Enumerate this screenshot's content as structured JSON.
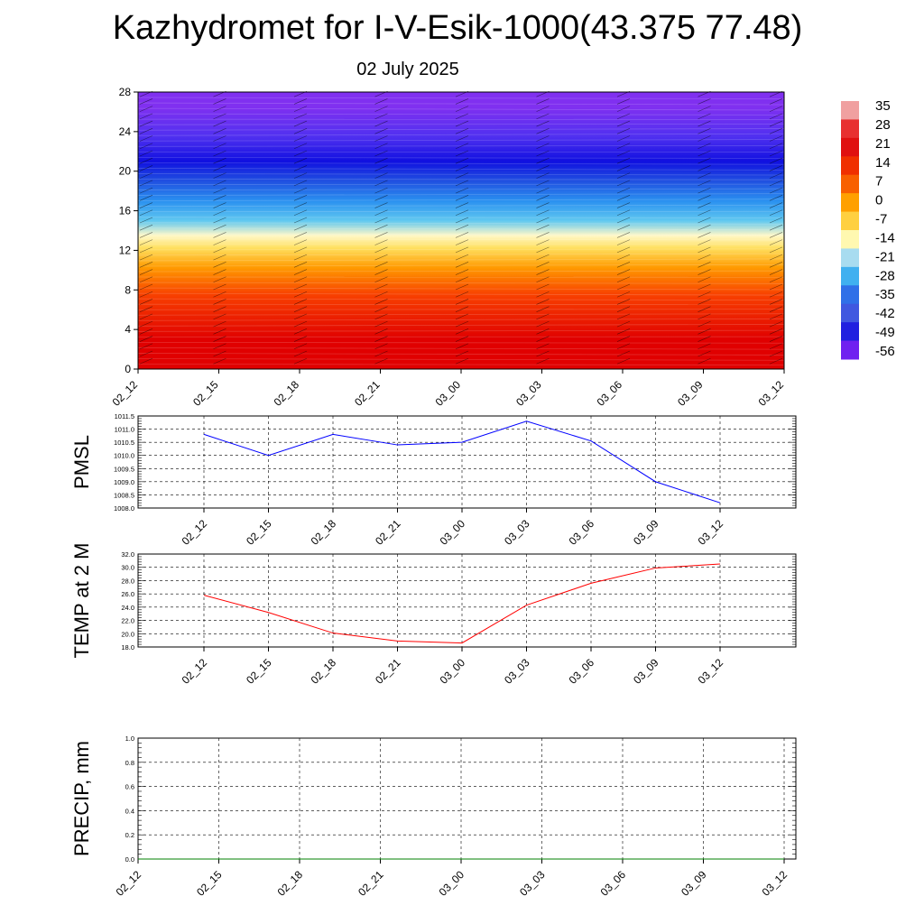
{
  "title": "Kazhydromet for I-V-Esik-1000(43.375 77.48)",
  "subtitle": "02 July 2025",
  "chart_data": [
    {
      "type": "heatmap",
      "name": "temperature-cross-section",
      "x_labels": [
        "02_12",
        "02_15",
        "02_18",
        "02_21",
        "03_00",
        "03_03",
        "03_06",
        "03_09",
        "03_12"
      ],
      "y_ticks": [
        0,
        4,
        8,
        12,
        16,
        20,
        24,
        28
      ],
      "ylim": [
        0,
        28
      ],
      "colorbar": {
        "labels": [
          "35",
          "28",
          "21",
          "14",
          "7",
          "0",
          "-7",
          "-14",
          "-21",
          "-28",
          "-35",
          "-42",
          "-49",
          "-56"
        ],
        "colors": [
          "#f0a0a0",
          "#e83030",
          "#e01010",
          "#f03000",
          "#f86000",
          "#ffa000",
          "#ffd040",
          "#fff8b0",
          "#a8dcf0",
          "#40b0f0",
          "#3070e8",
          "#4058e0",
          "#2020e0",
          "#7020f0"
        ]
      },
      "bands": [
        {
          "from": 0,
          "to": 6,
          "color": "#e00000"
        },
        {
          "from": 6,
          "to": 9,
          "color": "#f84000"
        },
        {
          "from": 9,
          "to": 11.5,
          "color": "#ff9a00"
        },
        {
          "from": 11.5,
          "to": 13,
          "color": "#ffe060"
        },
        {
          "from": 13,
          "to": 14,
          "color": "#fff8c8"
        },
        {
          "from": 14,
          "to": 16,
          "color": "#60c8f0"
        },
        {
          "from": 16,
          "to": 18,
          "color": "#2a90f0"
        },
        {
          "from": 18,
          "to": 20,
          "color": "#2050e0"
        },
        {
          "from": 20,
          "to": 22,
          "color": "#1010e0"
        },
        {
          "from": 22,
          "to": 25,
          "color": "#5030f0"
        },
        {
          "from": 25,
          "to": 28,
          "color": "#8030f0"
        }
      ]
    },
    {
      "type": "line",
      "name": "pmsl",
      "ylabel": "PMSL",
      "categories": [
        "02_12",
        "02_15",
        "02_18",
        "02_21",
        "03_00",
        "03_03",
        "03_06",
        "03_09",
        "03_12"
      ],
      "values": [
        1010.8,
        1010.0,
        1010.8,
        1010.4,
        1010.5,
        1011.3,
        1010.55,
        1009.0,
        1008.2
      ],
      "ylim": [
        1008.0,
        1011.5
      ],
      "y_ticks": [
        "1008.0",
        "1008.5",
        "1009.0",
        "1009.5",
        "1010.0",
        "1010.5",
        "1011.0",
        "1011.5"
      ],
      "color": "#0000ff",
      "grid": true
    },
    {
      "type": "line",
      "name": "temp-2m",
      "ylabel": "TEMP at 2 M",
      "categories": [
        "02_12",
        "02_15",
        "02_18",
        "02_21",
        "03_00",
        "03_03",
        "03_06",
        "03_09",
        "03_12"
      ],
      "values": [
        25.8,
        23.2,
        20.1,
        18.9,
        18.6,
        24.3,
        27.6,
        29.9,
        30.5
      ],
      "ylim": [
        18.0,
        32.0
      ],
      "y_ticks": [
        "18.0",
        "20.0",
        "22.0",
        "24.0",
        "26.0",
        "28.0",
        "30.0",
        "32.0"
      ],
      "color": "#ff0000",
      "grid": true
    },
    {
      "type": "line",
      "name": "precip",
      "ylabel": "PRECIP, mm",
      "categories": [
        "02_12",
        "02_15",
        "02_18",
        "02_21",
        "03_00",
        "03_03",
        "03_06",
        "03_09",
        "03_12"
      ],
      "values": [
        0,
        0,
        0,
        0,
        0,
        0,
        0,
        0,
        0
      ],
      "ylim": [
        0.0,
        1.0
      ],
      "y_ticks": [
        "0.0",
        "0.2",
        "0.4",
        "0.6",
        "0.8",
        "1.0"
      ],
      "color": "#008000",
      "grid": true
    }
  ]
}
